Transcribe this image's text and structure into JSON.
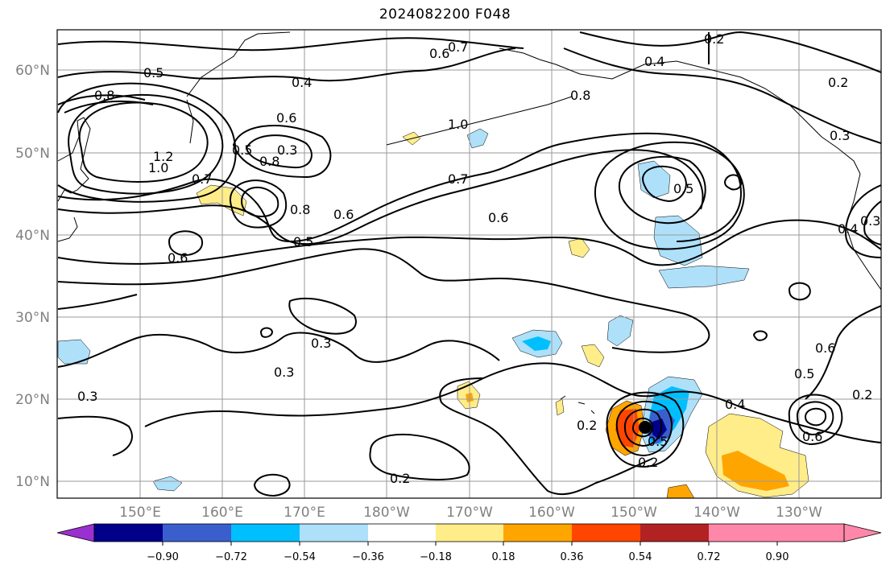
{
  "title": "2024082200 F048",
  "map": {
    "lat_labels": [
      "60°N",
      "50°N",
      "40°N",
      "30°N",
      "20°N",
      "10°N"
    ],
    "lon_labels": [
      "150°E",
      "160°E",
      "170°E",
      "180°W",
      "170°W",
      "160°W",
      "150°W",
      "140°W",
      "130°W"
    ],
    "contour_labels": [
      "0.2",
      "0.3",
      "0.4",
      "0.5",
      "0.6",
      "0.7",
      "0.8",
      "1.0",
      "1.2"
    ]
  },
  "colorbar": {
    "colors": [
      "#9b30d0",
      "#00008b",
      "#3a5fcd",
      "#00bfff",
      "#aee0fa",
      "#ffffff",
      "#ffed8a",
      "#ffa500",
      "#ff4500",
      "#b22222",
      "#ff88aa"
    ],
    "ticks": [
      "−0.90",
      "−0.72",
      "−0.54",
      "−0.36",
      "−0.18",
      "0.18",
      "0.36",
      "0.54",
      "0.72",
      "0.90"
    ]
  }
}
